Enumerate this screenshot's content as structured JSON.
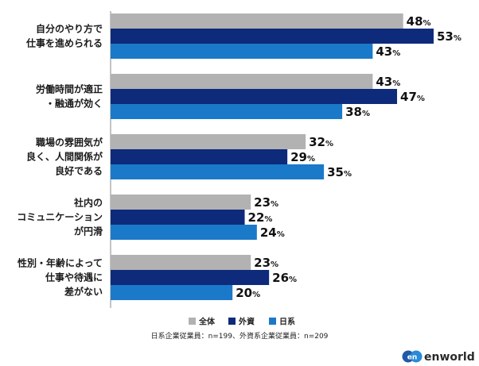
{
  "chart_data": {
    "type": "bar",
    "orientation": "horizontal",
    "categories": [
      [
        "自分のやり方で",
        "仕事を進められる"
      ],
      [
        "労働時間が適正",
        "・融通が効く"
      ],
      [
        "職場の雰囲気が",
        "良く、人間関係が",
        "良好である"
      ],
      [
        "社内の",
        "コミュニケーション",
        "が円滑"
      ],
      [
        "性別・年齢によって",
        "仕事や待遇に",
        "差がない"
      ]
    ],
    "series": [
      {
        "name": "全体",
        "color": "#b2b2b2",
        "values": [
          48,
          43,
          32,
          23,
          23
        ]
      },
      {
        "name": "外資",
        "color": "#0d2a7b",
        "values": [
          53,
          47,
          29,
          22,
          26
        ]
      },
      {
        "name": "日系",
        "color": "#1b79c9",
        "values": [
          43,
          38,
          35,
          24,
          20
        ]
      }
    ],
    "unit": "%",
    "xlim": [
      0,
      55
    ],
    "grid": false,
    "legend": "bottom-center",
    "note": "日系企業従業員：n=199、外資系企業従業員：n=209"
  },
  "logo": {
    "mark": "en",
    "text": "enworld"
  }
}
